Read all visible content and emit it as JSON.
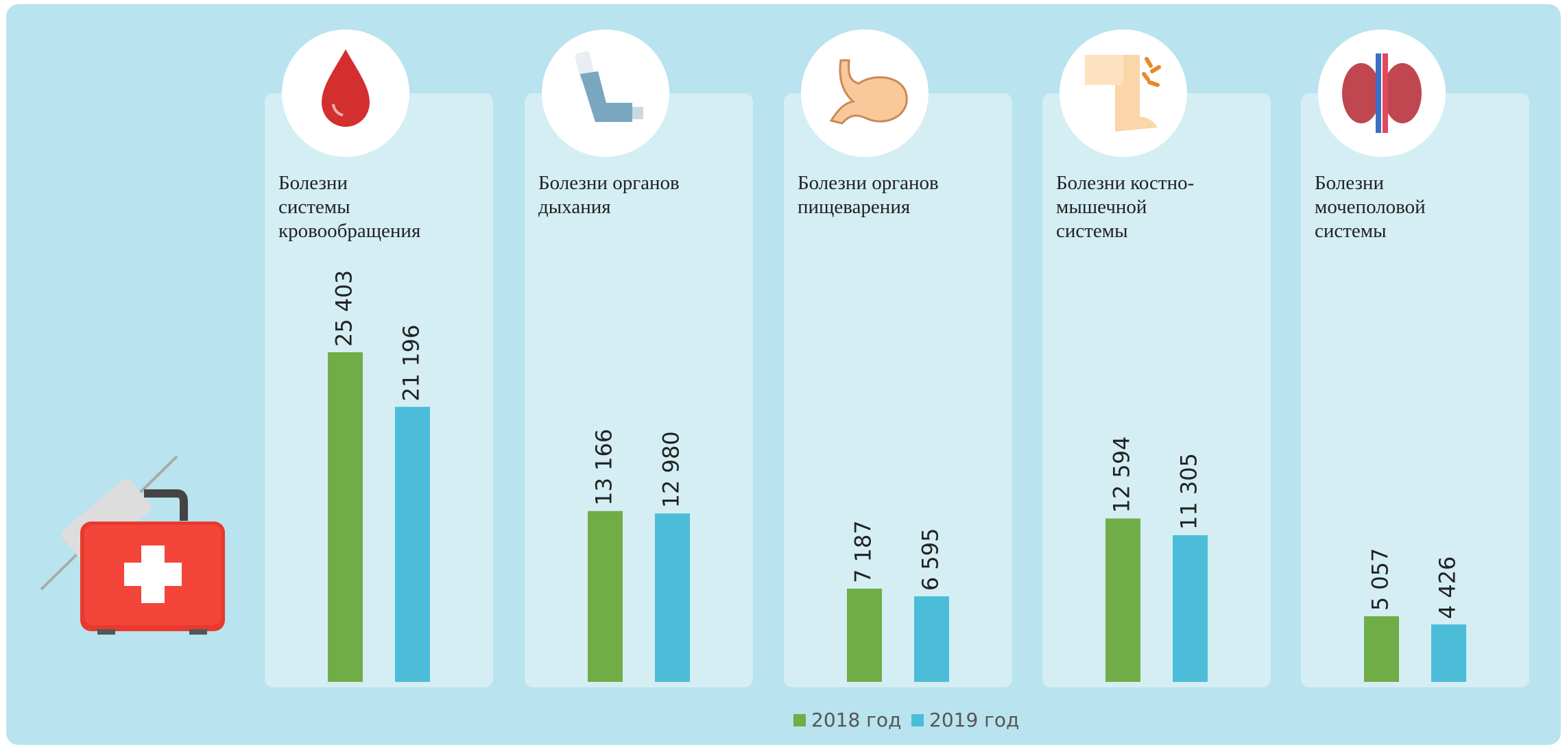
{
  "chart_data": {
    "type": "bar",
    "categories": [
      "Болезни\nсистемы\nкровообращения",
      "Болезни органов\nдыхания",
      "Болезни органов\nпищеварения",
      "Болезни костно-\nмышечной\nсистемы",
      "Болезни\nмочеполовой\nсистемы"
    ],
    "series": [
      {
        "name": "2018 год",
        "color": "#70ad47",
        "values": [
          25403,
          13166,
          7187,
          12594,
          5057
        ],
        "value_labels": [
          "25 403",
          "13 166",
          "7 187",
          "12 594",
          "5 057"
        ]
      },
      {
        "name": "2019 год",
        "color": "#4bbdd8",
        "values": [
          21196,
          12980,
          6595,
          11305,
          4426
        ],
        "value_labels": [
          "21 196",
          "12 980",
          "6 595",
          "11 305",
          "4 426"
        ]
      }
    ]
  }
}
